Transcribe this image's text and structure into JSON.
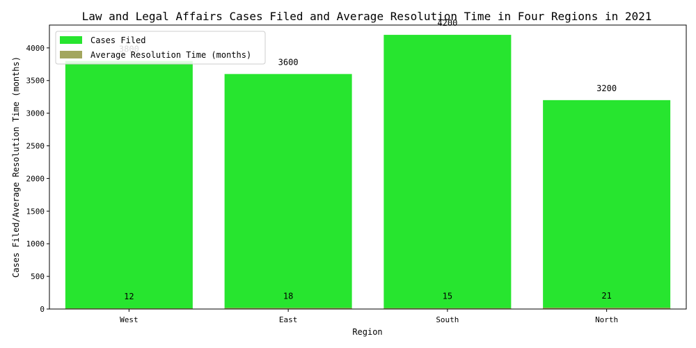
{
  "chart_data": {
    "type": "bar",
    "title": "Law and Legal Affairs Cases Filed and Average Resolution Time in Four Regions in 2021",
    "xlabel": "Region",
    "ylabel": "Cases Filed/Average Resolution Time (months)",
    "categories": [
      "West",
      "East",
      "South",
      "North"
    ],
    "ylim": [
      0,
      4350
    ],
    "yticks": [
      0,
      500,
      1000,
      1500,
      2000,
      2500,
      3000,
      3500,
      4000
    ],
    "grid": false,
    "legend_position": "top-left",
    "series": [
      {
        "name": "Cases Filed",
        "color": "#27e52f",
        "values": [
          3800,
          3600,
          4200,
          3200
        ]
      },
      {
        "name": "Average Resolution Time (months)",
        "color": "#a3a65e",
        "values": [
          12,
          18,
          15,
          21
        ]
      }
    ]
  }
}
